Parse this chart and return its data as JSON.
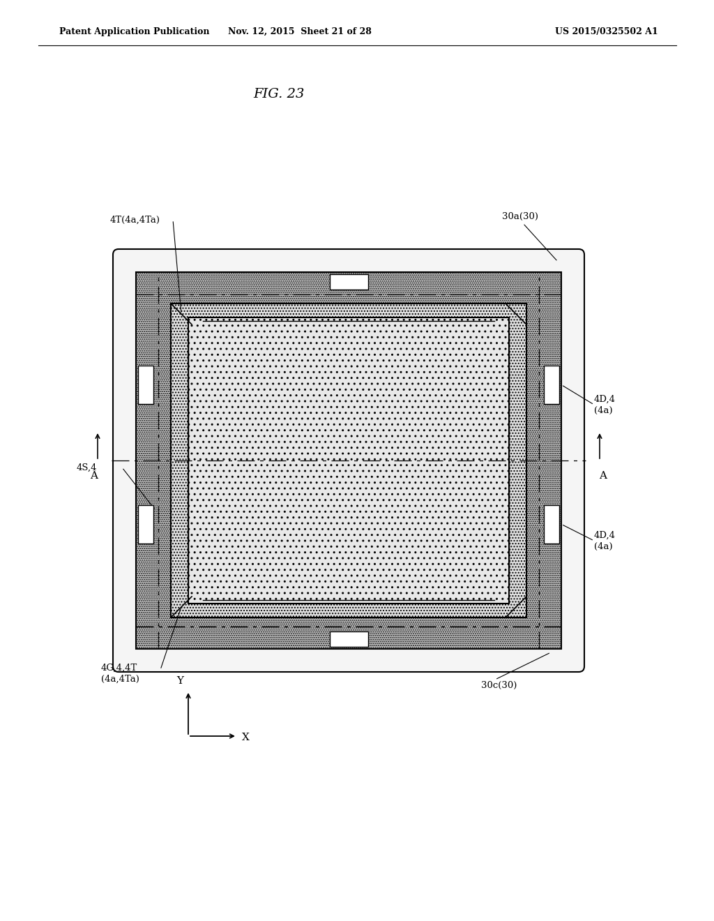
{
  "bg_color": "#ffffff",
  "header_left": "Patent Application Publication",
  "header_mid": "Nov. 12, 2015  Sheet 21 of 28",
  "header_right": "US 2015/0325502 A1",
  "fig_label": "FIG. 23",
  "label_4T": "4T(4a,4Ta)",
  "label_30a": "30a(30)",
  "label_4D_top": "4D,4\n(4a)",
  "label_4D_bot": "4D,4\n(4a)",
  "label_4S": "4S,4",
  "label_4G": "4G,4,4T\n(4a,4Ta)",
  "label_30c": "30c(30)",
  "label_A_left": "A",
  "label_A_right": "A",
  "annotation_font_size": 9.5,
  "header_font_size": 9,
  "fig_font_size": 14
}
